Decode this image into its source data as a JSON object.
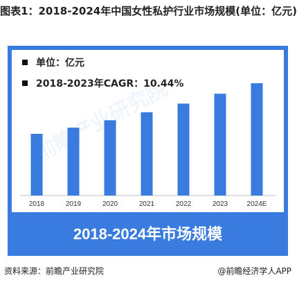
{
  "title": "图表1：2018-2024年中国女性私护行业市场规模(单位：亿元)",
  "legend": {
    "unit": "单位：亿元",
    "cagr": "2018-2023年CAGR：10.44%"
  },
  "banner": "2018-2024年市场规模",
  "watermark": "前瞻产业研究院",
  "footer": {
    "source": "资料来源：前瞻产业研究院",
    "app": "@前瞻经济学人APP"
  },
  "colors": {
    "accent": "#3A7BE0",
    "bar": "#3A7BE0"
  },
  "chart_data": {
    "type": "bar",
    "categories": [
      "2018",
      "2019",
      "2020",
      "2021",
      "2022",
      "2023",
      "2024E"
    ],
    "values": [
      100,
      110,
      122,
      135,
      149,
      165,
      182
    ],
    "title": "",
    "xlabel": "",
    "ylabel": "",
    "ylim": [
      0,
      200
    ],
    "grid": false,
    "data_labels": false
  }
}
